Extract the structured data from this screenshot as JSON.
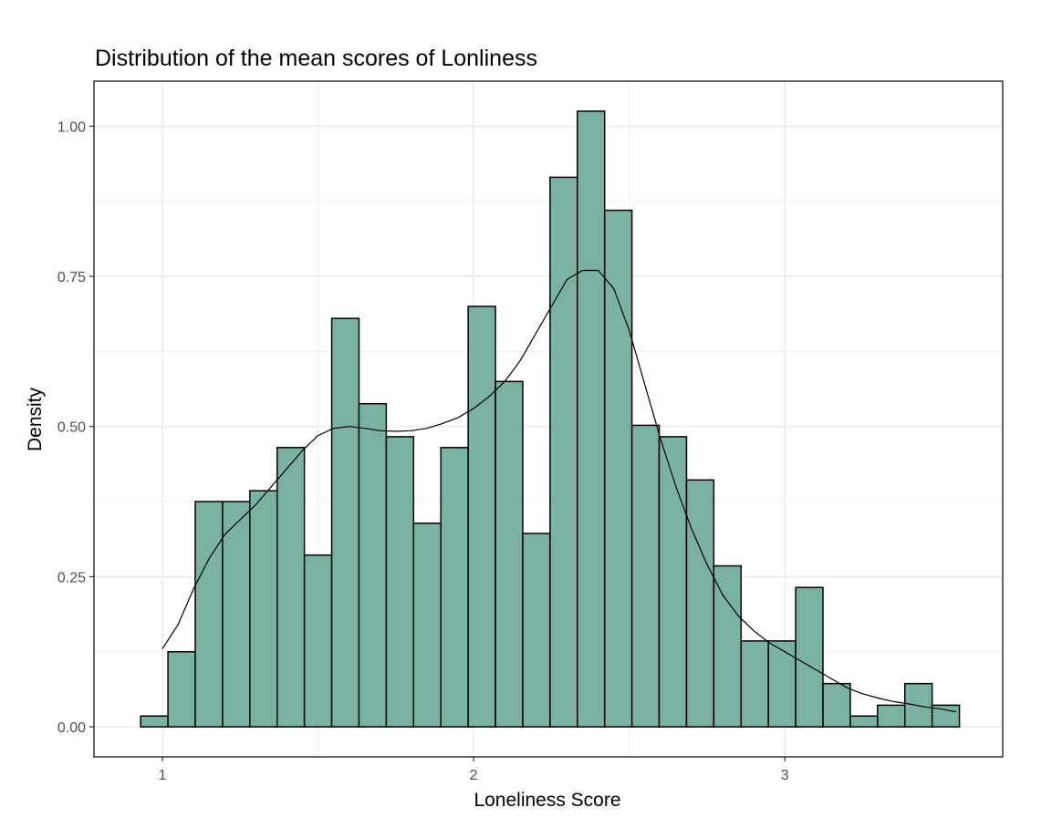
{
  "chart_data": {
    "type": "bar",
    "subtype": "histogram-with-density",
    "title": "Distribution of the mean scores of Lonliness",
    "xlabel": "Loneliness Score",
    "ylabel": "Density",
    "xlim": [
      0.78,
      3.7
    ],
    "ylim": [
      -0.05,
      1.075
    ],
    "x_ticks": [
      {
        "value": 1,
        "label": "1"
      },
      {
        "value": 2,
        "label": "2"
      },
      {
        "value": 3,
        "label": "3"
      }
    ],
    "y_ticks": [
      {
        "value": 0,
        "label": "0.00"
      },
      {
        "value": 0.25,
        "label": "0.25"
      },
      {
        "value": 0.5,
        "label": "0.50"
      },
      {
        "value": 0.75,
        "label": "0.75"
      },
      {
        "value": 1.0,
        "label": "1.00"
      }
    ],
    "grid": true,
    "bin_width": 0.0877,
    "bins_start": 0.93,
    "values": [
      0.018,
      0.125,
      0.375,
      0.375,
      0.393,
      0.465,
      0.286,
      0.68,
      0.538,
      0.483,
      0.339,
      0.465,
      0.7,
      0.575,
      0.322,
      0.915,
      1.025,
      0.86,
      0.502,
      0.483,
      0.411,
      0.268,
      0.143,
      0.143,
      0.232,
      0.072,
      0.018,
      0.036,
      0.072,
      0.036
    ],
    "density_curve": {
      "x": [
        1.0,
        1.05,
        1.1,
        1.15,
        1.2,
        1.25,
        1.3,
        1.35,
        1.4,
        1.45,
        1.5,
        1.55,
        1.6,
        1.65,
        1.7,
        1.75,
        1.8,
        1.85,
        1.9,
        1.95,
        2.0,
        2.05,
        2.1,
        2.15,
        2.2,
        2.25,
        2.3,
        2.35,
        2.4,
        2.45,
        2.5,
        2.55,
        2.6,
        2.65,
        2.7,
        2.75,
        2.8,
        2.85,
        2.9,
        2.95,
        3.0,
        3.05,
        3.1,
        3.15,
        3.2,
        3.25,
        3.3,
        3.35,
        3.4,
        3.45,
        3.5,
        3.55
      ],
      "y": [
        0.13,
        0.17,
        0.23,
        0.28,
        0.32,
        0.345,
        0.37,
        0.4,
        0.43,
        0.46,
        0.485,
        0.497,
        0.5,
        0.497,
        0.493,
        0.492,
        0.493,
        0.497,
        0.505,
        0.515,
        0.53,
        0.55,
        0.575,
        0.61,
        0.655,
        0.7,
        0.745,
        0.76,
        0.76,
        0.73,
        0.66,
        0.57,
        0.48,
        0.4,
        0.33,
        0.27,
        0.22,
        0.185,
        0.16,
        0.14,
        0.125,
        0.11,
        0.095,
        0.08,
        0.065,
        0.055,
        0.048,
        0.042,
        0.038,
        0.033,
        0.03,
        0.025
      ]
    },
    "colors": {
      "bar_fill": "#7bb1a2",
      "bar_stroke": "#000000",
      "curve": "#000000",
      "grid": "#ebebeb",
      "panel_border": "#333333"
    }
  }
}
